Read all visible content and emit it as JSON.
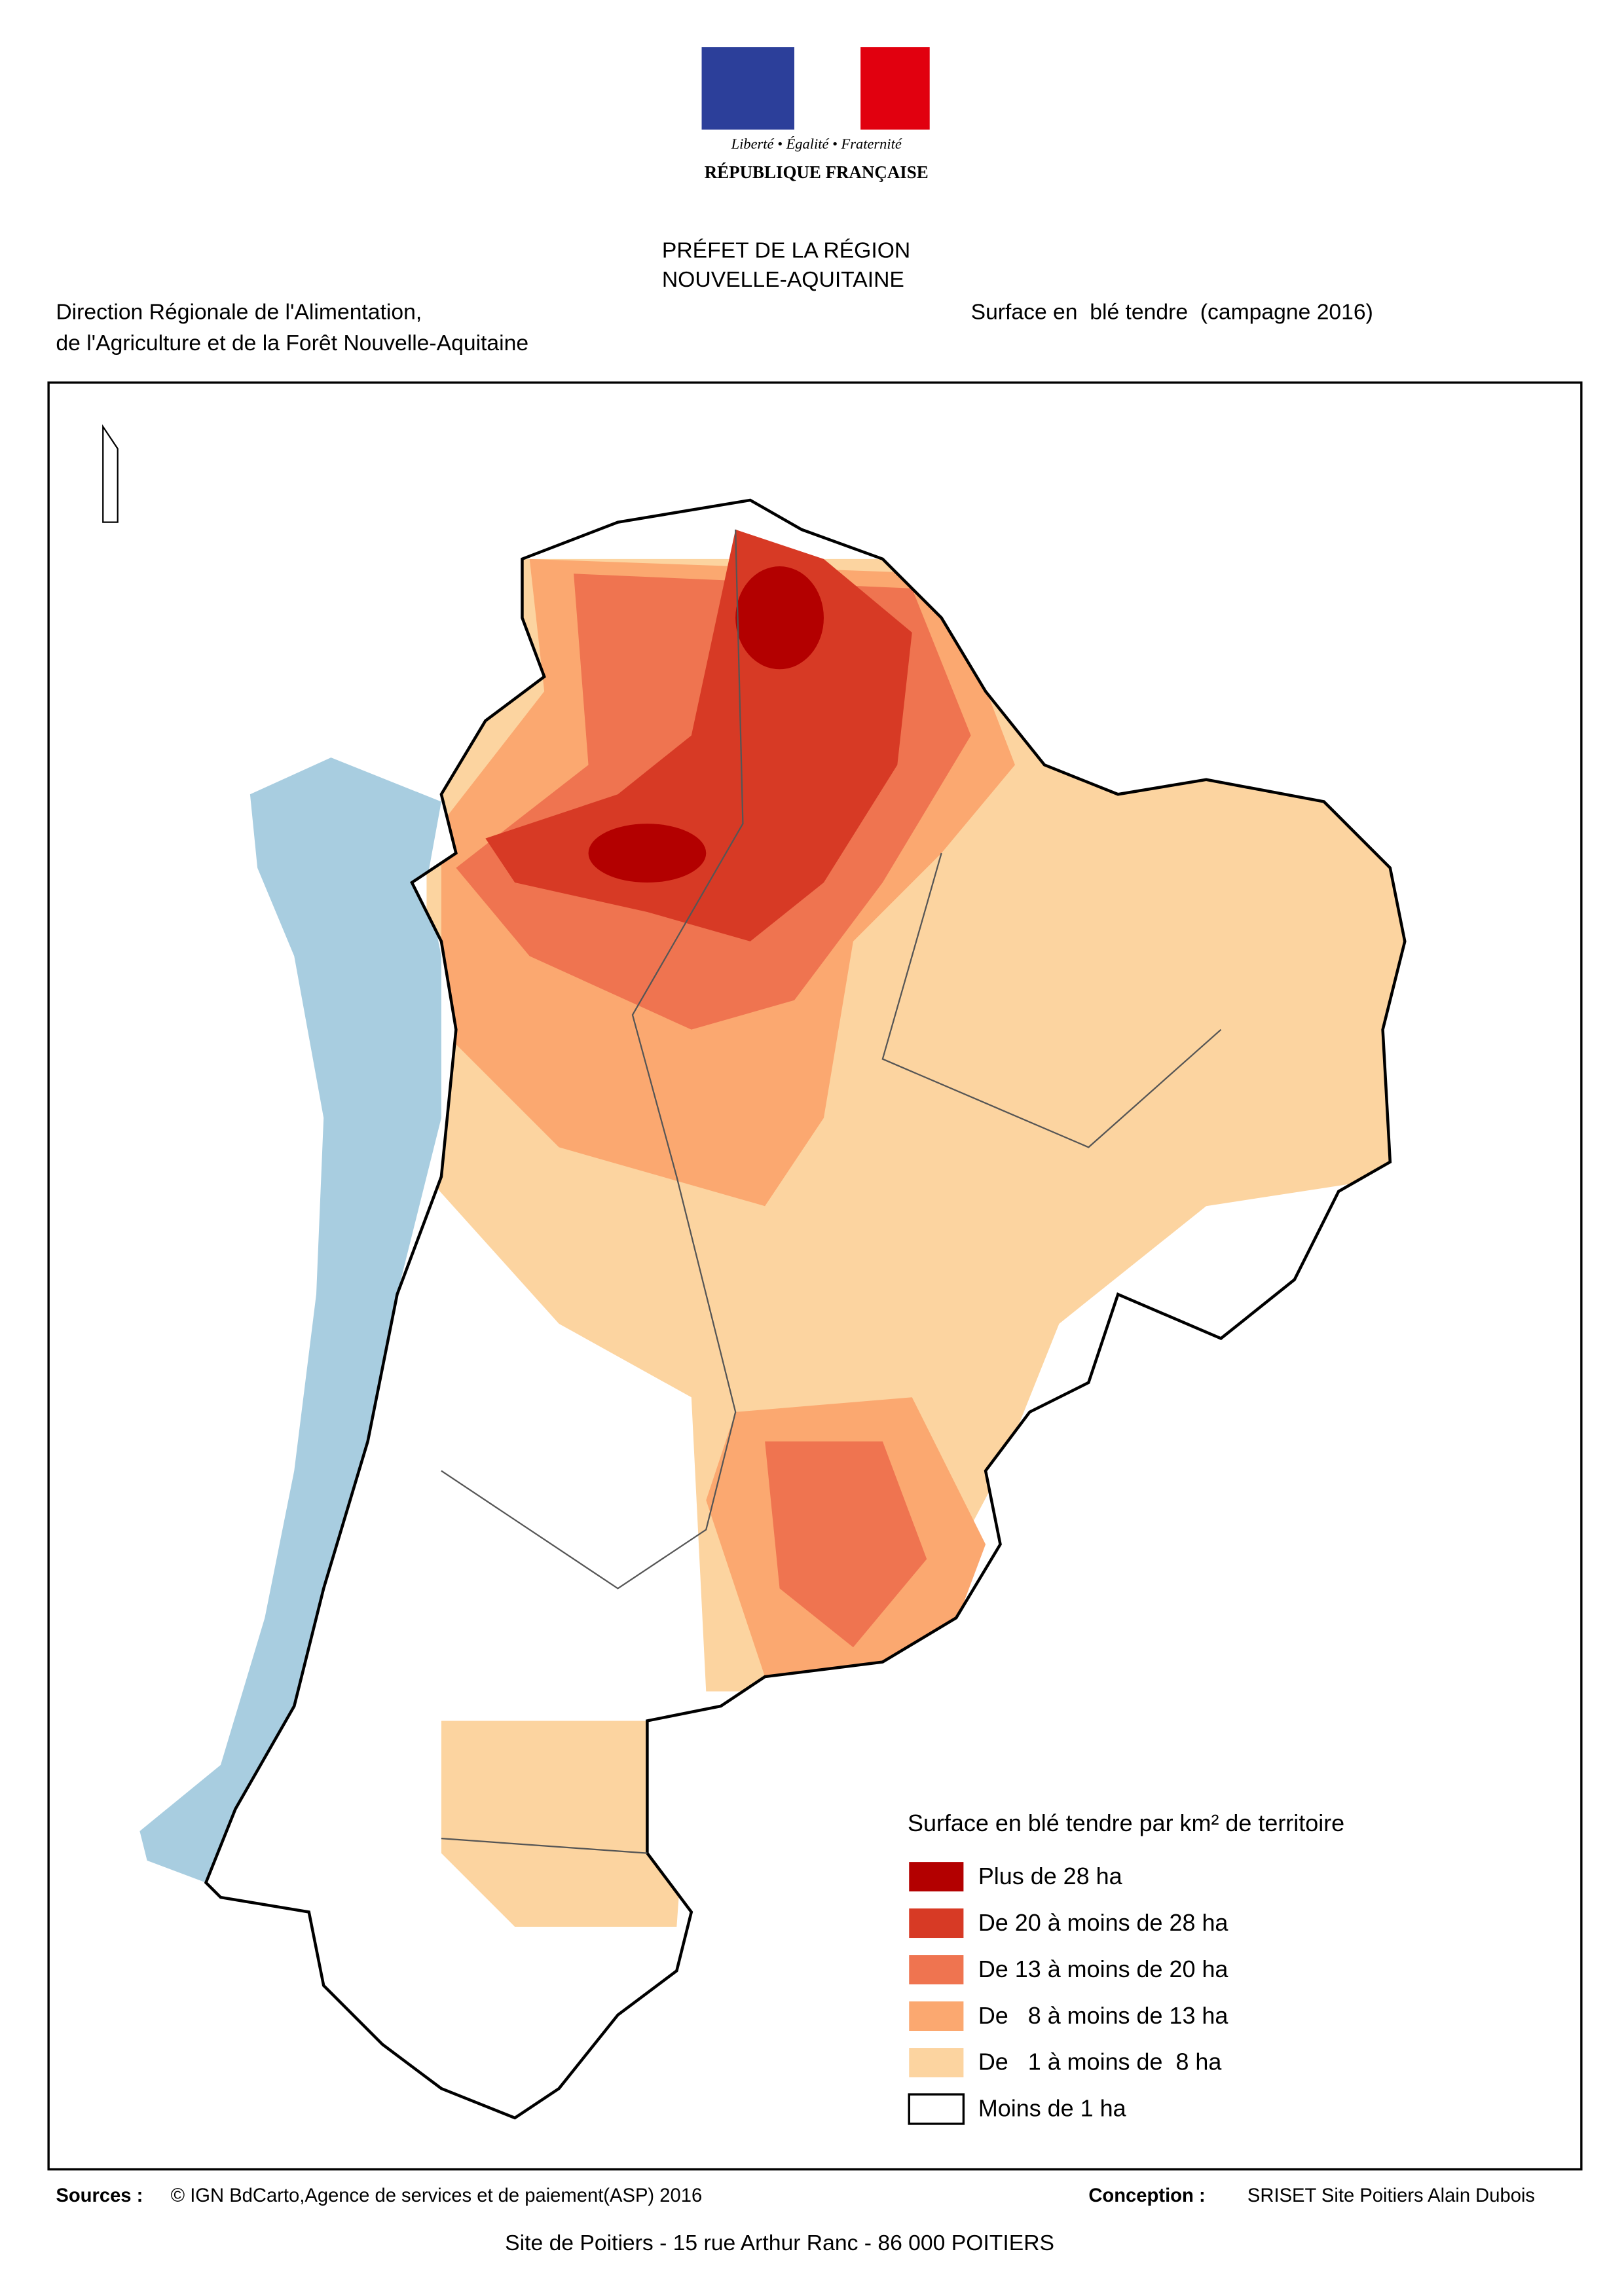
{
  "logo": {
    "motto": "Liberté • Égalité • Fraternité",
    "name": "RÉPUBLIQUE FRANÇAISE"
  },
  "header": {
    "prefet": [
      "PRÉFET DE LA RÉGION",
      "NOUVELLE-AQUITAINE"
    ],
    "department": [
      "Direction Régionale de l'Alimentation,",
      "de l'Agriculture et de la Forêt Nouvelle-Aquitaine"
    ],
    "title": "Surface en  blé tendre  (campagne 2016)"
  },
  "legend": {
    "title": "Surface en blé tendre par km² de territoire",
    "items": [
      {
        "label": "Plus de 28 ha",
        "color": "#b30000"
      },
      {
        "label": "De 20 à moins de 28 ha",
        "color": "#d73a25"
      },
      {
        "label": "De 13 à moins de 20 ha",
        "color": "#ef7450"
      },
      {
        "label": "De   8 à moins de 13 ha",
        "color": "#fba870"
      },
      {
        "label": "De   1 à moins de  8 ha",
        "color": "#fcd4a0"
      },
      {
        "label": "Moins de 1 ha",
        "color": "#ffffff"
      }
    ]
  },
  "footer": {
    "sources_label": "Sources :",
    "sources": "© IGN BdCarto,Agence de services et de paiement(ASP) 2016",
    "conception_label": "Conception :",
    "conception": "SRISET Site Poitiers Alain Dubois",
    "address": "Site de Poitiers - 15 rue Arthur Ranc - 86 000 POITIERS"
  }
}
